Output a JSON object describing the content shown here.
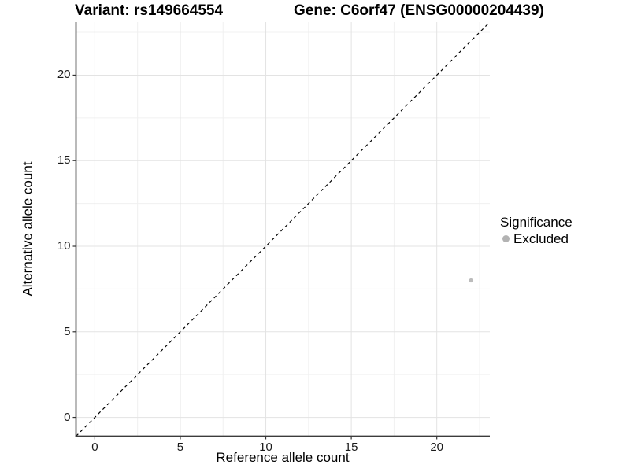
{
  "header": {
    "variant_title": "Variant: rs149664554",
    "gene_title": "Gene: C6orf47 (ENSG00000204439)"
  },
  "chart_data": {
    "type": "scatter",
    "xlabel": "Reference allele count",
    "ylabel": "Alternative allele count",
    "xlim": [
      -1.1,
      23.1
    ],
    "ylim": [
      -1.1,
      23.1
    ],
    "x_ticks": [
      0,
      5,
      10,
      15,
      20
    ],
    "y_ticks": [
      0,
      5,
      10,
      15,
      20
    ],
    "x_minor_ticks": [
      2.5,
      7.5,
      12.5,
      17.5,
      22.5
    ],
    "y_minor_ticks": [
      2.5,
      7.5,
      12.5,
      17.5,
      22.5
    ],
    "grid": true,
    "identity_line": {
      "style": "dashed",
      "color": "#000000",
      "from": -1.1,
      "to": 23.1
    },
    "points": [
      {
        "x": 22,
        "y": 8,
        "significance": "Excluded",
        "color": "#bcbcbc",
        "radius": 2.6
      }
    ],
    "legend": {
      "title": "Significance",
      "position": "right",
      "items": [
        {
          "label": "Excluded",
          "color": "#b3b3b3"
        }
      ]
    },
    "colors": {
      "background": "#ffffff",
      "axis_line": "#3c3c3c",
      "tick_mark": "#333333",
      "major_grid": "#e3e3e3",
      "minor_grid": "#f0f0f0",
      "tick_label": "#1a1a1a"
    }
  }
}
